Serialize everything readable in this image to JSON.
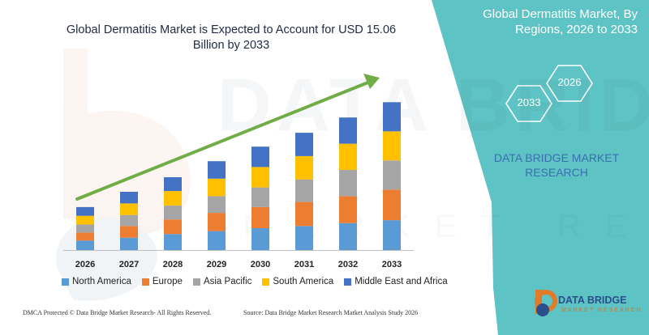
{
  "colors": {
    "panel": "#5ec3c4",
    "arrow": "#70ad47",
    "axis": "#bfbfbf"
  },
  "header": {
    "title": "Global Dermatitis Market is Expected to Account for USD 15.06 Billion by 2033",
    "right_title": "Global Dermatitis Market, By Regions, 2026 to 2033"
  },
  "hexagons": {
    "start_year": "2026",
    "end_year": "2033"
  },
  "brand": {
    "label": "DATA BRIDGE MARKET RESEARCH",
    "logo_text": "DATA BRIDGE",
    "logo_sub": "MARKET RESEARCH"
  },
  "footer": {
    "left": "DMCA Protected © Data Bridge Market Research- All Rights Reserved.",
    "right": "Source: Data Bridge Market Research  Market Analysis Study 2026"
  },
  "chart_data": {
    "type": "bar",
    "stacked": true,
    "title": "Global Dermatitis Market is Expected to Account for USD 15.06 Billion by 2033",
    "categories": [
      "2026",
      "2027",
      "2028",
      "2029",
      "2030",
      "2031",
      "2032",
      "2033"
    ],
    "series": [
      {
        "name": "North America",
        "color": "#5b9bd5",
        "values": [
          13,
          17,
          22,
          26,
          30,
          33,
          37,
          41
        ]
      },
      {
        "name": "Europe",
        "color": "#ed7d31",
        "values": [
          11,
          16,
          20,
          25,
          29,
          33,
          37,
          42
        ]
      },
      {
        "name": "Asia Pacific",
        "color": "#a5a5a5",
        "values": [
          11,
          15,
          19,
          23,
          27,
          31,
          36,
          40
        ]
      },
      {
        "name": "South America",
        "color": "#ffc000",
        "values": [
          12,
          16,
          20,
          24,
          28,
          32,
          36,
          40
        ]
      },
      {
        "name": "Middle East and Africa",
        "color": "#4472c4",
        "values": [
          12,
          16,
          19,
          24,
          28,
          32,
          36,
          40
        ]
      }
    ],
    "legend_position": "bottom",
    "grid": false
  }
}
